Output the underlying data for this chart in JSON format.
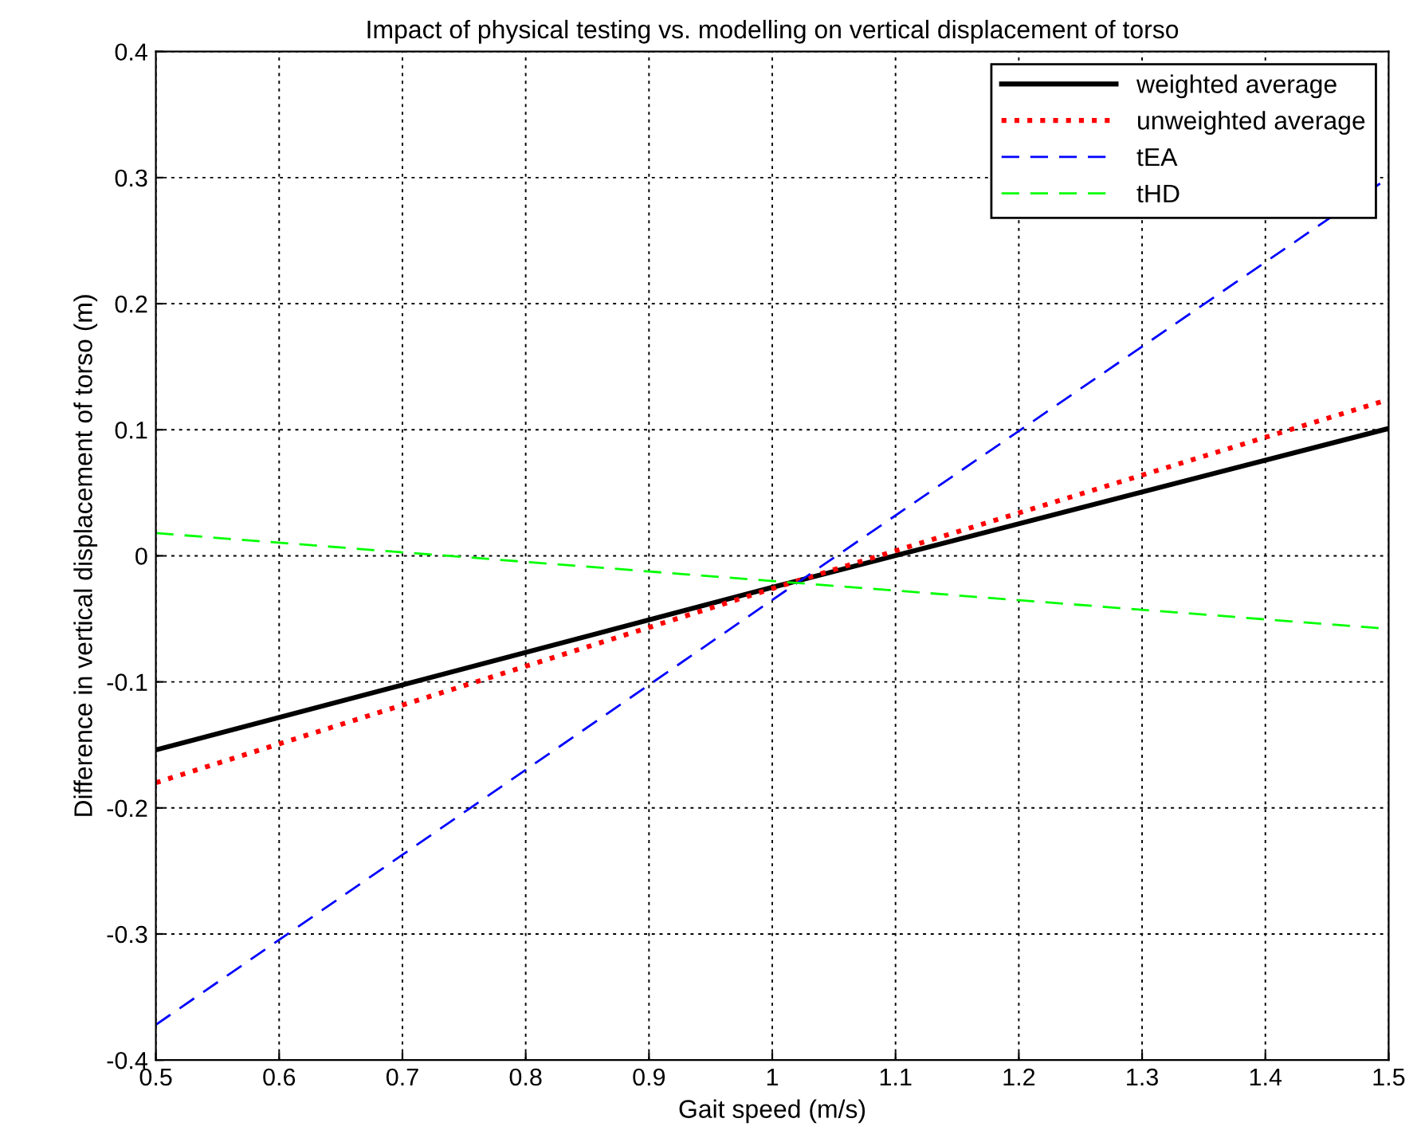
{
  "chart_data": {
    "type": "line",
    "title": "Impact of physical testing vs. modelling on vertical displacement of torso",
    "xlabel": "Gait speed (m/s)",
    "ylabel": "Difference in vertical displacement of torso (m)",
    "x": [
      0.5,
      1.0,
      1.5
    ],
    "series": [
      {
        "name": "weighted average",
        "color": "#000000",
        "values": [
          -0.154,
          -0.025,
          0.101
        ],
        "line_style": "solid"
      },
      {
        "name": "unweighted average",
        "color": "#ff0000",
        "values": [
          -0.18,
          -0.026,
          0.124
        ],
        "line_style": "dotted"
      },
      {
        "name": "tEA",
        "color": "#0000ff",
        "values": [
          -0.372,
          -0.035,
          0.3
        ],
        "line_style": "dashed"
      },
      {
        "name": "tHD",
        "color": "#00ff00",
        "values": [
          0.018,
          -0.02,
          -0.058
        ],
        "line_style": "dashed"
      }
    ],
    "xlim": [
      0.5,
      1.5
    ],
    "ylim": [
      -0.4,
      0.4
    ],
    "xticks": [
      0.5,
      0.6,
      0.7,
      0.8,
      0.9,
      1,
      1.1,
      1.2,
      1.3,
      1.4,
      1.5
    ],
    "yticks": [
      -0.4,
      -0.3,
      -0.2,
      -0.1,
      0,
      0.1,
      0.2,
      0.3,
      0.4
    ],
    "grid": true,
    "legend": "top right",
    "marker": "none"
  }
}
